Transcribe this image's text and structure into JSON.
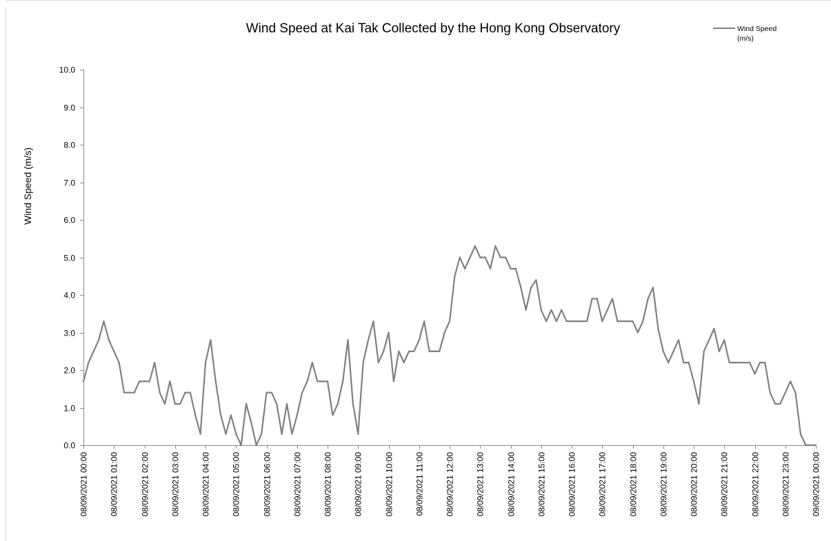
{
  "chart_data": {
    "type": "line",
    "title": "Wind Speed at Kai Tak Collected by the Hong Kong Observatory",
    "xlabel": "",
    "ylabel": "Wind Speed (m/s)",
    "ylim": [
      0,
      10
    ],
    "yticks": [
      "0.0",
      "1.0",
      "2.0",
      "3.0",
      "4.0",
      "5.0",
      "6.0",
      "7.0",
      "8.0",
      "9.0",
      "10.0"
    ],
    "xlim": [
      "08/09/2021 00:00",
      "09/09/2021 00:00"
    ],
    "xticks": [
      "08/09/2021 00:00",
      "08/09/2021 01:00",
      "08/09/2021 02:00",
      "08/09/2021 03:00",
      "08/09/2021 04:00",
      "08/09/2021 05:00",
      "08/09/2021 06:00",
      "08/09/2021 07:00",
      "08/09/2021 08:00",
      "08/09/2021 09:00",
      "08/09/2021 10:00",
      "08/09/2021 11:00",
      "08/09/2021 12:00",
      "08/09/2021 13:00",
      "08/09/2021 14:00",
      "08/09/2021 15:00",
      "08/09/2021 16:00",
      "08/09/2021 17:00",
      "08/09/2021 18:00",
      "08/09/2021 19:00",
      "08/09/2021 20:00",
      "08/09/2021 21:00",
      "08/09/2021 22:00",
      "08/09/2021 23:00",
      "09/09/2021 00:00"
    ],
    "grid": false,
    "legend_position": "top-right",
    "line_color": "#7f7f7f",
    "series": [
      {
        "name": "Wind Speed\n(m/s)",
        "x": [
          "08/09/2021 00:00",
          "08/09/2021 00:10",
          "08/09/2021 00:20",
          "08/09/2021 00:30",
          "08/09/2021 00:40",
          "08/09/2021 00:50",
          "08/09/2021 01:00",
          "08/09/2021 01:10",
          "08/09/2021 01:20",
          "08/09/2021 01:30",
          "08/09/2021 01:40",
          "08/09/2021 01:50",
          "08/09/2021 02:00",
          "08/09/2021 02:10",
          "08/09/2021 02:20",
          "08/09/2021 02:30",
          "08/09/2021 02:40",
          "08/09/2021 02:50",
          "08/09/2021 03:00",
          "08/09/2021 03:10",
          "08/09/2021 03:20",
          "08/09/2021 03:30",
          "08/09/2021 03:40",
          "08/09/2021 03:50",
          "08/09/2021 04:00",
          "08/09/2021 04:10",
          "08/09/2021 04:20",
          "08/09/2021 04:30",
          "08/09/2021 04:40",
          "08/09/2021 04:50",
          "08/09/2021 05:00",
          "08/09/2021 05:10",
          "08/09/2021 05:20",
          "08/09/2021 05:30",
          "08/09/2021 05:40",
          "08/09/2021 05:50",
          "08/09/2021 06:00",
          "08/09/2021 06:10",
          "08/09/2021 06:20",
          "08/09/2021 06:30",
          "08/09/2021 06:40",
          "08/09/2021 06:50",
          "08/09/2021 07:00",
          "08/09/2021 07:10",
          "08/09/2021 07:20",
          "08/09/2021 07:30",
          "08/09/2021 07:40",
          "08/09/2021 07:50",
          "08/09/2021 08:00",
          "08/09/2021 08:10",
          "08/09/2021 08:20",
          "08/09/2021 08:30",
          "08/09/2021 08:40",
          "08/09/2021 08:50",
          "08/09/2021 09:00",
          "08/09/2021 09:10",
          "08/09/2021 09:20",
          "08/09/2021 09:30",
          "08/09/2021 09:40",
          "08/09/2021 09:50",
          "08/09/2021 10:00",
          "08/09/2021 10:10",
          "08/09/2021 10:20",
          "08/09/2021 10:30",
          "08/09/2021 10:40",
          "08/09/2021 10:50",
          "08/09/2021 11:00",
          "08/09/2021 11:10",
          "08/09/2021 11:20",
          "08/09/2021 11:30",
          "08/09/2021 11:40",
          "08/09/2021 11:50",
          "08/09/2021 12:00",
          "08/09/2021 12:10",
          "08/09/2021 12:20",
          "08/09/2021 12:30",
          "08/09/2021 12:40",
          "08/09/2021 12:50",
          "08/09/2021 13:00",
          "08/09/2021 13:10",
          "08/09/2021 13:20",
          "08/09/2021 13:30",
          "08/09/2021 13:40",
          "08/09/2021 13:50",
          "08/09/2021 14:00",
          "08/09/2021 14:10",
          "08/09/2021 14:20",
          "08/09/2021 14:30",
          "08/09/2021 14:40",
          "08/09/2021 14:50",
          "08/09/2021 15:00",
          "08/09/2021 15:10",
          "08/09/2021 15:20",
          "08/09/2021 15:30",
          "08/09/2021 15:40",
          "08/09/2021 15:50",
          "08/09/2021 16:00",
          "08/09/2021 16:10",
          "08/09/2021 16:20",
          "08/09/2021 16:30",
          "08/09/2021 16:40",
          "08/09/2021 16:50",
          "08/09/2021 17:00",
          "08/09/2021 17:10",
          "08/09/2021 17:20",
          "08/09/2021 17:30",
          "08/09/2021 17:40",
          "08/09/2021 17:50",
          "08/09/2021 18:00",
          "08/09/2021 18:10",
          "08/09/2021 18:20",
          "08/09/2021 18:30",
          "08/09/2021 18:40",
          "08/09/2021 18:50",
          "08/09/2021 19:00",
          "08/09/2021 19:10",
          "08/09/2021 19:20",
          "08/09/2021 19:30",
          "08/09/2021 19:40",
          "08/09/2021 19:50",
          "08/09/2021 20:00",
          "08/09/2021 20:10",
          "08/09/2021 20:20",
          "08/09/2021 20:30",
          "08/09/2021 20:40",
          "08/09/2021 20:50",
          "08/09/2021 21:00",
          "08/09/2021 21:10",
          "08/09/2021 21:20",
          "08/09/2021 21:30",
          "08/09/2021 21:40",
          "08/09/2021 21:50",
          "08/09/2021 22:00",
          "08/09/2021 22:10",
          "08/09/2021 22:20",
          "08/09/2021 22:30",
          "08/09/2021 22:40",
          "08/09/2021 22:50",
          "08/09/2021 23:00",
          "08/09/2021 23:10",
          "08/09/2021 23:20",
          "08/09/2021 23:30",
          "08/09/2021 23:40",
          "08/09/2021 23:50",
          "09/09/2021 00:00"
        ],
        "values": [
          1.7,
          2.2,
          2.5,
          2.8,
          3.3,
          2.8,
          2.5,
          2.2,
          1.4,
          1.4,
          1.4,
          1.7,
          1.7,
          1.7,
          2.2,
          1.4,
          1.1,
          1.7,
          1.1,
          1.1,
          1.4,
          1.4,
          0.8,
          0.3,
          2.2,
          2.8,
          1.7,
          0.8,
          0.3,
          0.8,
          0.3,
          0.0,
          1.1,
          0.6,
          0.0,
          0.3,
          1.4,
          1.4,
          1.1,
          0.3,
          1.1,
          0.3,
          0.8,
          1.4,
          1.7,
          2.2,
          1.7,
          1.7,
          1.7,
          0.8,
          1.1,
          1.7,
          2.8,
          1.1,
          0.3,
          2.2,
          2.8,
          3.3,
          2.2,
          2.5,
          3.0,
          1.7,
          2.5,
          2.2,
          2.5,
          2.5,
          2.8,
          3.3,
          2.5,
          2.5,
          2.5,
          3.0,
          3.3,
          4.5,
          5.0,
          4.7,
          5.0,
          5.3,
          5.0,
          5.0,
          4.7,
          5.3,
          5.0,
          5.0,
          4.7,
          4.7,
          4.2,
          3.6,
          4.2,
          4.4,
          3.6,
          3.3,
          3.6,
          3.3,
          3.6,
          3.3,
          3.3,
          3.3,
          3.3,
          3.3,
          3.9,
          3.9,
          3.3,
          3.6,
          3.9,
          3.3,
          3.3,
          3.3,
          3.3,
          3.0,
          3.3,
          3.9,
          4.2,
          3.1,
          2.5,
          2.2,
          2.5,
          2.8,
          2.2,
          2.2,
          1.7,
          1.1,
          2.5,
          2.8,
          3.1,
          2.5,
          2.8,
          2.2,
          2.2,
          2.2,
          2.2,
          2.2,
          1.9,
          2.2,
          2.2,
          1.4,
          1.1,
          1.1,
          1.4,
          1.7,
          1.4,
          0.3,
          0.0,
          0.0,
          0.0
        ]
      }
    ]
  }
}
